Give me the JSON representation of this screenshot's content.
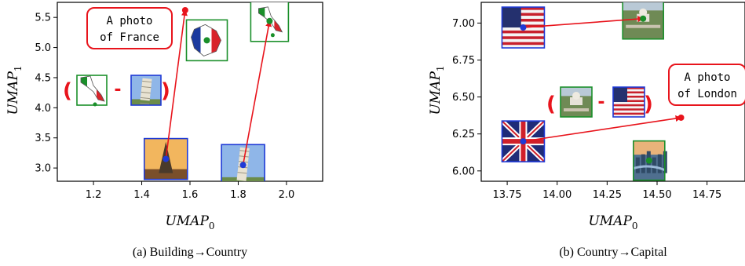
{
  "chart_data": [
    {
      "type": "scatter",
      "caption": "(a) Building→Country",
      "xlabel": "UMAP",
      "xlabel_sub": "0",
      "ylabel": "UMAP",
      "ylabel_sub": "1",
      "xlim": [
        1.05,
        2.15
      ],
      "ylim": [
        2.78,
        5.75
      ],
      "xticks": [
        "1.2",
        "1.4",
        "1.6",
        "1.8",
        "2.0"
      ],
      "xtick_values": [
        1.2,
        1.4,
        1.6,
        1.8,
        2.0
      ],
      "yticks": [
        "3.0",
        "3.5",
        "4.0",
        "4.5",
        "5.0",
        "5.5"
      ],
      "ytick_values": [
        3.0,
        3.5,
        4.0,
        4.5,
        5.0,
        5.5
      ],
      "points": [
        {
          "x": 1.5,
          "y": 3.15,
          "color": "#1f3ad6",
          "icon": "eiffel-tower-photo",
          "frame": "#1f3ad6"
        },
        {
          "x": 1.82,
          "y": 3.05,
          "color": "#1f3ad6",
          "icon": "pisa-tower-photo",
          "frame": "#1f3ad6"
        },
        {
          "x": 1.67,
          "y": 5.12,
          "color": "#1a8f2a",
          "icon": "france-flag-map",
          "frame": "#1a8f2a"
        },
        {
          "x": 1.93,
          "y": 5.44,
          "color": "#1a8f2a",
          "icon": "italy-flag-map",
          "frame": "#1a8f2a"
        }
      ],
      "arrows": [
        {
          "from": [
            1.5,
            3.15
          ],
          "to": [
            1.58,
            5.62
          ]
        },
        {
          "from": [
            1.82,
            3.05
          ],
          "to": [
            1.93,
            5.44
          ]
        }
      ],
      "callout": {
        "line1": "A photo",
        "line2": "of France",
        "target": [
          1.58,
          5.62
        ]
      },
      "analogy": {
        "open": "(",
        "minus": "-",
        "close": ")",
        "left_icon": "italy-flag-map",
        "right_icon": "pisa-tower-photo"
      }
    },
    {
      "type": "scatter",
      "caption": "(b) Country→Capital",
      "xlabel": "UMAP",
      "xlabel_sub": "0",
      "ylabel": "UMAP",
      "ylabel_sub": "1",
      "xlim": [
        13.62,
        14.94
      ],
      "ylim": [
        5.93,
        7.14
      ],
      "xticks": [
        "13.75",
        "14.00",
        "14.25",
        "14.50",
        "14.75"
      ],
      "xtick_values": [
        13.75,
        14.0,
        14.25,
        14.5,
        14.75
      ],
      "yticks": [
        "6.00",
        "6.25",
        "6.50",
        "6.75",
        "7.00"
      ],
      "ytick_values": [
        6.0,
        6.25,
        6.5,
        6.75,
        7.0
      ],
      "points": [
        {
          "x": 13.83,
          "y": 6.97,
          "color": "#1f3ad6",
          "icon": "us-flag-photo",
          "frame": "#1f3ad6"
        },
        {
          "x": 13.83,
          "y": 6.2,
          "color": "#1f3ad6",
          "icon": "uk-flag-photo",
          "frame": "#1f3ad6"
        },
        {
          "x": 14.43,
          "y": 7.03,
          "color": "#1a8f2a",
          "icon": "washington-city-photo",
          "frame": "#1a8f2a"
        },
        {
          "x": 14.46,
          "y": 6.07,
          "color": "#1a8f2a",
          "icon": "london-city-photo",
          "frame": "#1a8f2a"
        }
      ],
      "arrows": [
        {
          "from": [
            13.83,
            6.97
          ],
          "to": [
            14.43,
            7.03
          ]
        },
        {
          "from": [
            13.83,
            6.2
          ],
          "to": [
            14.62,
            6.36
          ]
        }
      ],
      "callout": {
        "line1": "A photo",
        "line2": "of London",
        "target": [
          14.62,
          6.36
        ]
      },
      "analogy": {
        "open": "(",
        "minus": "-",
        "close": ")",
        "left_icon": "washington-city-photo",
        "right_icon": "us-flag-photo"
      }
    }
  ]
}
